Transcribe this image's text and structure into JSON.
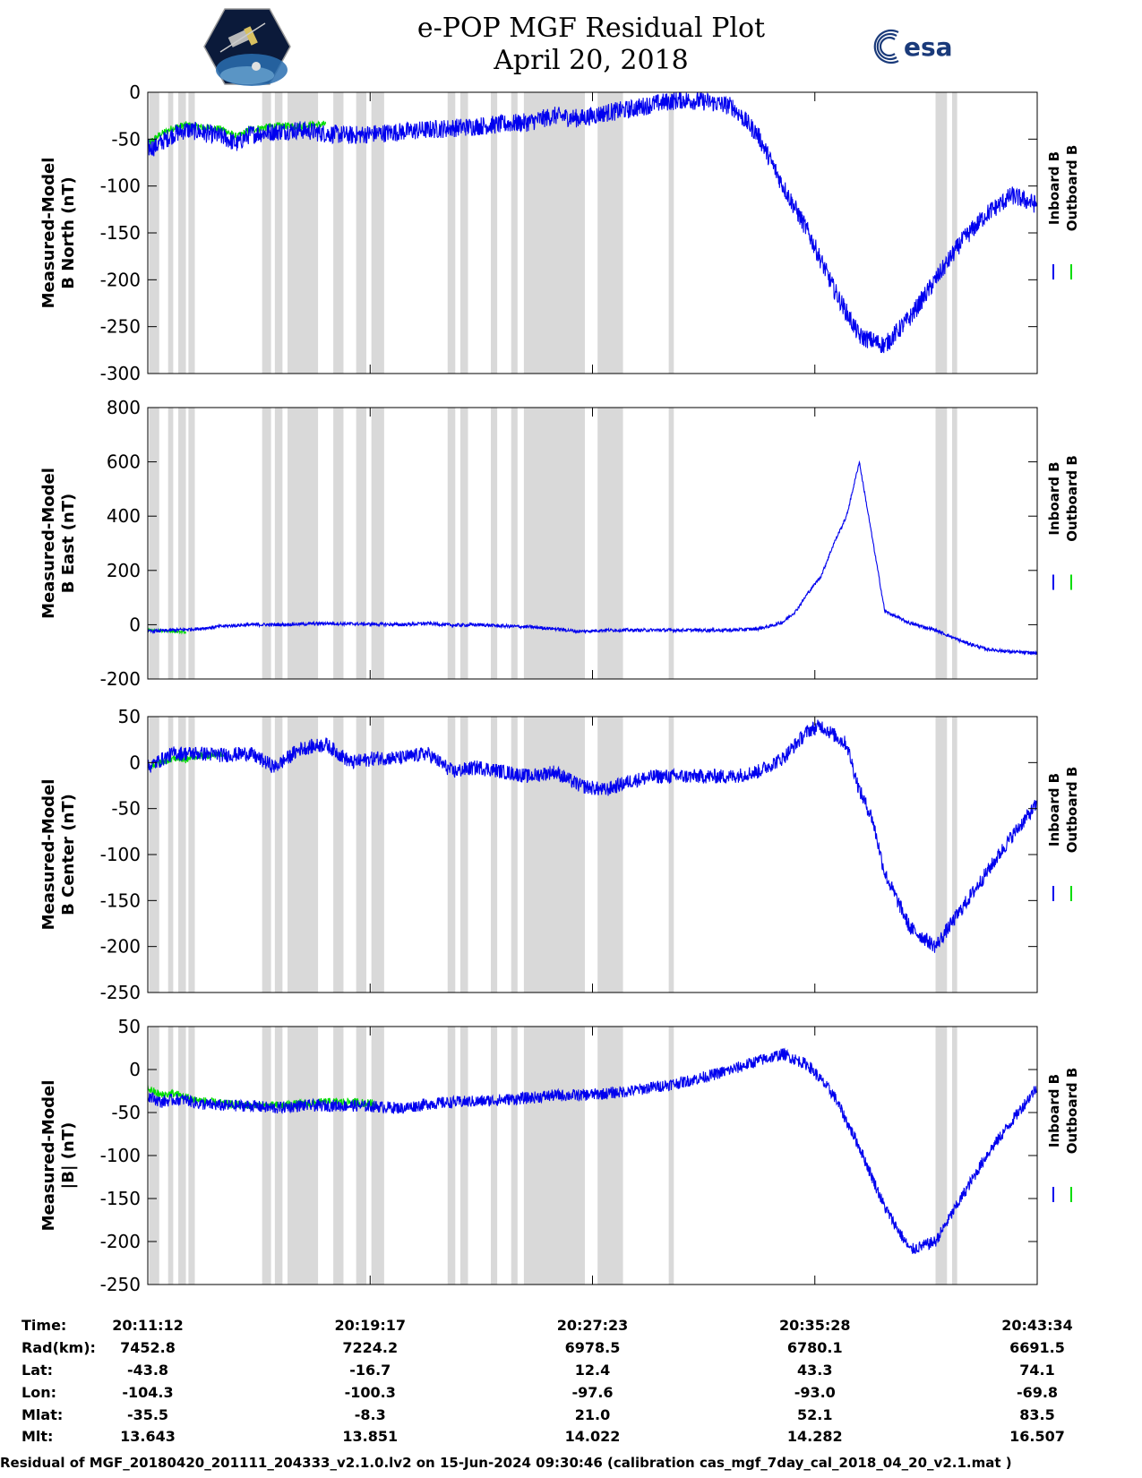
{
  "header": {
    "title_line1": "e-POP MGF Residual Plot",
    "title_line2": "April 20, 2018"
  },
  "logos": {
    "left": "cassiope-satellite-logo",
    "right": "esa-logo"
  },
  "colors": {
    "inboard": "#0000ee",
    "outboard": "#00dd00",
    "gap": "#d9d9d9"
  },
  "legend": {
    "inboard": "Inboard B",
    "outboard": "Outboard B"
  },
  "chart_data": [
    {
      "type": "line",
      "ylabel_line1": "Measured-Model",
      "ylabel_line2": "B North (nT)",
      "ylim": [
        -300,
        0
      ],
      "yticks": [
        "0",
        "-50",
        "-100",
        "-150",
        "-200",
        "-250",
        "-300"
      ],
      "ytick_values": [
        0,
        -50,
        -100,
        -150,
        -200,
        -250,
        -300
      ],
      "series": [
        {
          "name": "Inboard B",
          "x": [
            0,
            0.3,
            0.6,
            1,
            1.5,
            2,
            2.5,
            3,
            3.5,
            4,
            5,
            6,
            7,
            8,
            9,
            10,
            11,
            12,
            13,
            14,
            15,
            16,
            17,
            18,
            19,
            20,
            21,
            22,
            23,
            24,
            25,
            26,
            27,
            28,
            29,
            30,
            31,
            32,
            33,
            34,
            35
          ],
          "y": [
            -60,
            -58,
            -52,
            -45,
            -40,
            -42,
            -45,
            -48,
            -55,
            -45,
            -42,
            -40,
            -44,
            -46,
            -44,
            -42,
            -40,
            -38,
            -36,
            -34,
            -32,
            -25,
            -28,
            -22,
            -18,
            -12,
            -8,
            -10,
            -15,
            -45,
            -100,
            -150,
            -210,
            -260,
            -270,
            -240,
            -200,
            -160,
            -130,
            -110,
            -120
          ],
          "noise": 10
        },
        {
          "name": "Outboard B",
          "x": [
            0,
            0.5,
            1,
            1.5,
            2,
            2.5,
            3,
            3.5,
            4,
            5,
            6,
            7
          ],
          "y": [
            -55,
            -45,
            -38,
            -35,
            -37,
            -38,
            -40,
            -48,
            -40,
            -36,
            -36,
            -34
          ],
          "noise": 4
        }
      ]
    },
    {
      "type": "line",
      "ylabel_line1": "Measured-Model",
      "ylabel_line2": "B East (nT)",
      "ylim": [
        -200,
        800
      ],
      "yticks": [
        "800",
        "600",
        "400",
        "200",
        "0",
        "-200"
      ],
      "ytick_values": [
        800,
        600,
        400,
        200,
        0,
        -200
      ],
      "series": [
        {
          "name": "Inboard B",
          "x": [
            0,
            1,
            2,
            3,
            4,
            5,
            6,
            7,
            8,
            9,
            10,
            11,
            12,
            13,
            14,
            15,
            16,
            17,
            18,
            19,
            20,
            21,
            22,
            23,
            24,
            24.5,
            25,
            25.5,
            26,
            26.5,
            27,
            27.5,
            28,
            29,
            30,
            31,
            32,
            33,
            34,
            35
          ],
          "y": [
            -25,
            -20,
            -15,
            -5,
            0,
            0,
            2,
            5,
            3,
            2,
            0,
            5,
            -2,
            0,
            -5,
            -8,
            -15,
            -25,
            -20,
            -20,
            -20,
            -20,
            -20,
            -20,
            -15,
            -5,
            10,
            50,
            120,
            180,
            300,
            400,
            600,
            50,
            5,
            -20,
            -60,
            -90,
            -100,
            -105
          ],
          "noise": 6
        },
        {
          "name": "Outboard B",
          "x": [
            0,
            0.5,
            1,
            1.5
          ],
          "y": [
            -20,
            -22,
            -25,
            -28
          ],
          "noise": 4
        }
      ]
    },
    {
      "type": "line",
      "ylabel_line1": "Measured-Model",
      "ylabel_line2": "B Center (nT)",
      "ylim": [
        -250,
        50
      ],
      "yticks": [
        "50",
        "0",
        "-50",
        "-100",
        "-150",
        "-200",
        "-250"
      ],
      "ytick_values": [
        50,
        0,
        -50,
        -100,
        -150,
        -200,
        -250
      ],
      "series": [
        {
          "name": "Inboard B",
          "x": [
            0,
            1,
            2,
            3,
            4,
            5,
            6,
            7,
            8,
            9,
            10,
            11,
            12,
            13,
            14,
            15,
            16,
            17,
            18,
            19,
            20,
            21,
            22,
            23,
            24,
            25,
            26,
            26.5,
            27,
            27.5,
            28,
            28.5,
            29,
            30,
            31,
            32,
            33,
            34,
            35
          ],
          "y": [
            -5,
            10,
            10,
            8,
            10,
            -5,
            15,
            20,
            0,
            5,
            5,
            10,
            -10,
            -5,
            -10,
            -15,
            -10,
            -25,
            -30,
            -20,
            -15,
            -15,
            -15,
            -15,
            -10,
            5,
            35,
            40,
            30,
            20,
            -30,
            -60,
            -120,
            -180,
            -200,
            -160,
            -120,
            -80,
            -45
          ],
          "noise": 8
        },
        {
          "name": "Outboard B",
          "x": [
            0,
            0.5,
            1,
            1.5,
            2,
            2.5,
            3
          ],
          "y": [
            -5,
            0,
            5,
            3,
            8,
            8,
            10
          ],
          "noise": 4
        }
      ]
    },
    {
      "type": "line",
      "ylabel_line1": "Measured-Model",
      "ylabel_line2": "|B| (nT)",
      "ylim": [
        -250,
        50
      ],
      "yticks": [
        "50",
        "0",
        "-50",
        "-100",
        "-150",
        "-200",
        "-250"
      ],
      "ytick_values": [
        50,
        0,
        -50,
        -100,
        -150,
        -200,
        -250
      ],
      "series": [
        {
          "name": "Inboard B",
          "x": [
            0,
            0.5,
            1,
            1.5,
            2,
            3,
            4,
            5,
            6,
            7,
            8,
            9,
            10,
            11,
            12,
            13,
            14,
            15,
            16,
            17,
            18,
            19,
            20,
            21,
            22,
            23,
            24,
            25,
            26,
            27,
            28,
            29,
            30,
            31,
            32,
            33,
            34,
            35
          ],
          "y": [
            -30,
            -38,
            -35,
            -35,
            -40,
            -42,
            -42,
            -45,
            -42,
            -42,
            -42,
            -43,
            -45,
            -40,
            -38,
            -37,
            -35,
            -33,
            -30,
            -30,
            -28,
            -25,
            -20,
            -15,
            -8,
            0,
            10,
            18,
            5,
            -30,
            -90,
            -160,
            -210,
            -200,
            -150,
            -100,
            -60,
            -20
          ],
          "noise": 7
        },
        {
          "name": "Outboard B",
          "x": [
            0,
            0.5,
            1,
            1.5,
            2,
            3,
            4,
            5,
            6,
            7,
            8,
            9
          ],
          "y": [
            -22,
            -30,
            -28,
            -32,
            -36,
            -40,
            -42,
            -42,
            -40,
            -38,
            -38,
            -40
          ],
          "noise": 5
        }
      ]
    }
  ],
  "gaps": [
    [
      0.05,
      0.45
    ],
    [
      0.8,
      1.0
    ],
    [
      1.2,
      1.5
    ],
    [
      1.6,
      1.85
    ],
    [
      4.5,
      4.85
    ],
    [
      5.0,
      5.3
    ],
    [
      5.5,
      6.7
    ],
    [
      7.3,
      7.7
    ],
    [
      8.2,
      8.6
    ],
    [
      8.8,
      9.3
    ],
    [
      11.8,
      12.1
    ],
    [
      12.3,
      12.6
    ],
    [
      13.5,
      13.75
    ],
    [
      14.3,
      14.55
    ],
    [
      14.8,
      17.2
    ],
    [
      17.7,
      18.7
    ],
    [
      20.5,
      20.7
    ],
    [
      31.0,
      31.45
    ],
    [
      31.65,
      31.85
    ]
  ],
  "xlim": [
    0,
    35
  ],
  "xticks": [
    0,
    8.75,
    17.5,
    26.25,
    35
  ],
  "info": {
    "row_labels": [
      "Time:",
      "Rad(km):",
      "Lat:",
      "Lon:",
      "Mlat:",
      "Mlt:"
    ],
    "columns": [
      [
        "20:11:12",
        "7452.8",
        "-43.8",
        "-104.3",
        "-35.5",
        "13.643"
      ],
      [
        "20:19:17",
        "7224.2",
        "-16.7",
        "-100.3",
        "-8.3",
        "13.851"
      ],
      [
        "20:27:23",
        "6978.5",
        "12.4",
        "-97.6",
        "21.0",
        "14.022"
      ],
      [
        "20:35:28",
        "6780.1",
        "43.3",
        "-93.0",
        "52.1",
        "14.282"
      ],
      [
        "20:43:34",
        "6691.5",
        "74.1",
        "-69.8",
        "83.5",
        "16.507"
      ]
    ]
  },
  "footer": "Residual of MGF_20180420_201111_204333_v2.1.0.lv2 on 15-Jun-2024 09:30:46 (calibration cas_mgf_7day_cal_2018_04_20_v2.1.mat )"
}
